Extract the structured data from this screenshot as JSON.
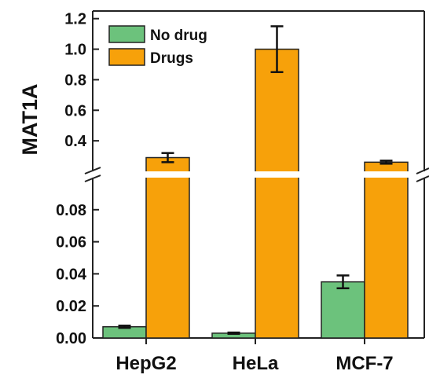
{
  "chart_data": {
    "type": "bar",
    "categories": [
      "HepG2",
      "HeLa",
      "MCF-7"
    ],
    "ylabel": "MAT1A",
    "xlabel": "",
    "title": "",
    "axis_break": {
      "lower_range": [
        0,
        0.1
      ],
      "upper_range": [
        0.2,
        1.25
      ],
      "lower_ticks": [
        "0.00",
        "0.02",
        "0.04",
        "0.06",
        "0.08"
      ],
      "upper_ticks": [
        "0.4",
        "0.6",
        "0.8",
        "1.0",
        "1.2"
      ]
    },
    "legend_position": "top-left",
    "series": [
      {
        "name": "No drug",
        "color": "#6cc27c",
        "values": [
          0.007,
          0.003,
          0.035
        ],
        "errors": [
          0.0007,
          0.0004,
          0.004
        ]
      },
      {
        "name": "Drugs",
        "color": "#f7a10a",
        "values": [
          0.29,
          1.0,
          0.26
        ],
        "errors": [
          0.03,
          0.15,
          0.01
        ]
      }
    ]
  }
}
